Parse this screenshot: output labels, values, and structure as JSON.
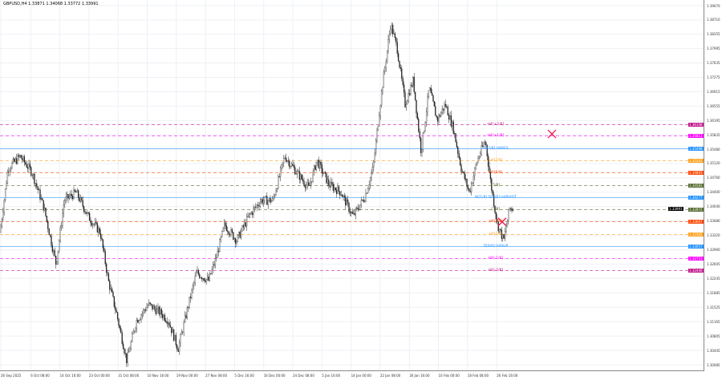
{
  "window": {
    "title": "GBPUSD,H4  1.33871 1.34068 1.33772 1.33991",
    "symbol": "GBPUSD",
    "timeframe": "H4",
    "current_price": "1.33991"
  },
  "chart_data": {
    "type": "candlestick",
    "y_ticks": [
      "1.39070",
      "1.38710",
      "1.38355",
      "1.37995",
      "1.37635",
      "1.37275",
      "1.36915",
      "1.36555",
      "1.36195",
      "1.35835",
      "1.35480",
      "1.35120",
      "1.34760",
      "1.34400",
      "1.34040",
      "1.33680",
      "1.33320",
      "1.32960",
      "1.32605",
      "1.32245",
      "1.31885",
      "1.31525",
      "1.31165",
      "1.30805",
      "1.30445",
      "1.30085"
    ],
    "ylim": [
      1.30085,
      1.3907
    ],
    "x_ticks": [
      "26 Sep 2025",
      "6 Oct 08:00",
      "14 Oct 16:00",
      "23 Oct 00:00",
      "31 Oct 08:00",
      "10 Nov 16:00",
      "19 Nov 00:00",
      "27 Nov 08:00",
      "5 Dec 16:00",
      "16 Dec 00:00",
      "24 Dec 08:00",
      "5 Jan 16:00",
      "14 Jan 00:00",
      "22 Jan 08:00",
      "30 Jan 16:00",
      "10 Feb 00:00",
      "18 Feb 08:00",
      "26 Feb 16:00"
    ],
    "price_path": [
      1.33393,
      1.34998,
      1.35299,
      1.34898,
      1.33995,
      1.32591,
      1.34195,
      1.34396,
      1.33794,
      1.33393,
      1.32189,
      1.31387,
      1.30183,
      1.31186,
      1.31588,
      1.31387,
      1.31186,
      1.30484,
      1.31588,
      1.3239,
      1.32189,
      1.32791,
      1.33594,
      1.33192,
      1.33794,
      1.34195,
      1.34195,
      1.35299,
      1.34898,
      1.34496,
      1.35198,
      1.34597,
      1.34396,
      1.33794,
      1.34296,
      1.34998,
      1.36803,
      1.38609,
      1.38007,
      1.36603,
      1.37204,
      1.35399,
      1.37004,
      1.36201,
      1.36603,
      1.36001,
      1.34998,
      1.34396,
      1.35198,
      1.357,
      1.34597,
      1.33594,
      1.33192,
      1.33995,
      1.33991
    ],
    "levels": [
      {
        "label": "H4[+2/8]",
        "price": 1.36108,
        "price_text": "1.36108",
        "color": "#c0158c",
        "style": "dashed"
      },
      {
        "label": "H4[+1/8]",
        "price": 1.35811,
        "price_text": "1.35811",
        "color": "#ff00ff",
        "style": "dashed"
      },
      {
        "label": "W[7/8] H4RES",
        "price": 1.35498,
        "price_text": "1.35498",
        "color": "#1e90ff",
        "style": "solid"
      },
      {
        "label": "H4[7/8]",
        "price": 1.35202,
        "price_text": "1.35202",
        "color": "#ff9f1a",
        "style": "dashed"
      },
      {
        "label": "H4[6/8]",
        "price": 1.34893,
        "price_text": "1.34893",
        "color": "#ff4500",
        "style": "dashed"
      },
      {
        "label": "[5/8]",
        "price": 1.34583,
        "price_text": "1.34583",
        "color": "#556b2f",
        "style": "dashed"
      },
      {
        "label": "W[1/8] D[4/8] H4PIVOT",
        "price": 1.34277,
        "price_text": "1.34277",
        "color": "#1e90ff",
        "style": "solid"
      },
      {
        "label": "[3/8]",
        "price": 1.33972,
        "price_text": "1.33972",
        "color": "#556b2f",
        "style": "dashed"
      },
      {
        "label": "H4[2/8]",
        "price": 1.33667,
        "price_text": "1.33667",
        "color": "#ff4500",
        "style": "dashed"
      },
      {
        "label": "H4[1/8]",
        "price": 1.33362,
        "price_text": "1.33362",
        "color": "#ff9f1a",
        "style": "dashed"
      },
      {
        "label": "D[0/8] H4SUP",
        "price": 1.33057,
        "price_text": "1.33057",
        "color": "#1e90ff",
        "style": "solid"
      },
      {
        "label": "H4[-1/8]",
        "price": 1.32751,
        "price_text": "1.32751",
        "color": "#ff00ff",
        "style": "dashed"
      },
      {
        "label": "H4[-2/8]",
        "price": 1.32446,
        "price_text": "1.32446",
        "color": "#c0158c",
        "style": "dashed"
      }
    ],
    "markers": [
      {
        "icon": "cross-icon",
        "color": "#e8174a",
        "price": 1.3586
      },
      {
        "icon": "cross-icon",
        "color": "#e8174a",
        "price": 1.3366
      }
    ]
  }
}
